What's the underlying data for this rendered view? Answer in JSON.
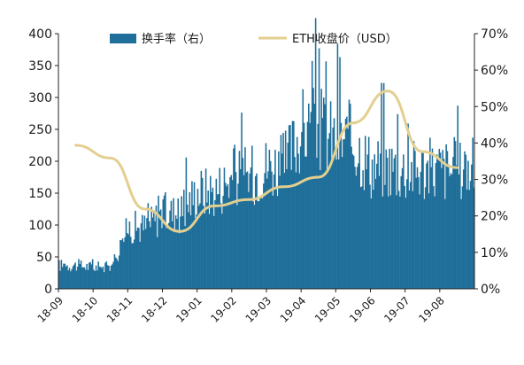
{
  "chart_data": {
    "type": "bar+line",
    "title": "",
    "xlabel": "",
    "ylabel_left": "",
    "ylabel_right": "",
    "ylim_left": [
      0,
      400
    ],
    "ylim_right": [
      0,
      70
    ],
    "yticks_left": [
      "0",
      "50",
      "100",
      "150",
      "200",
      "250",
      "300",
      "350",
      "400"
    ],
    "yticks_right": [
      "0%",
      "10%",
      "20%",
      "30%",
      "40%",
      "50%",
      "60%",
      "70%"
    ],
    "xticks": [
      "18-09",
      "18-10",
      "18-11",
      "18-12",
      "19-01",
      "19-02",
      "19-03",
      "19-04",
      "19-05",
      "19-06",
      "19-07",
      "19-08"
    ],
    "grid": false,
    "legend": {
      "placement": "top",
      "items": [
        {
          "label": "换手率（右）",
          "kind": "bar",
          "color": "#1f6f9a"
        },
        {
          "label": "ETH收盘价（USD）",
          "kind": "line",
          "color": "#e3cf8f"
        }
      ]
    },
    "series": [
      {
        "name": "换手率（右）",
        "axis": "right",
        "kind": "bar",
        "color": "#1f6f9a",
        "unit": "%",
        "x_start": "2018-09",
        "x_end": "2019-08",
        "monthly_average": [
          6.5,
          6.0,
          17,
          21,
          27,
          31,
          34,
          44,
          41,
          34,
          33,
          33
        ],
        "peak": 66
      },
      {
        "name": "ETH收盘价（USD）",
        "axis": "left",
        "kind": "line",
        "color": "#e3cf8f",
        "unit": "USD",
        "x": [
          "18-09",
          "18-10",
          "18-11",
          "18-12",
          "19-01",
          "19-02",
          "19-03",
          "19-04",
          "19-05",
          "19-06",
          "19-07",
          "19-08"
        ],
        "values": [
          225,
          205,
          125,
          90,
          130,
          140,
          160,
          175,
          260,
          310,
          215,
          190
        ]
      }
    ]
  }
}
